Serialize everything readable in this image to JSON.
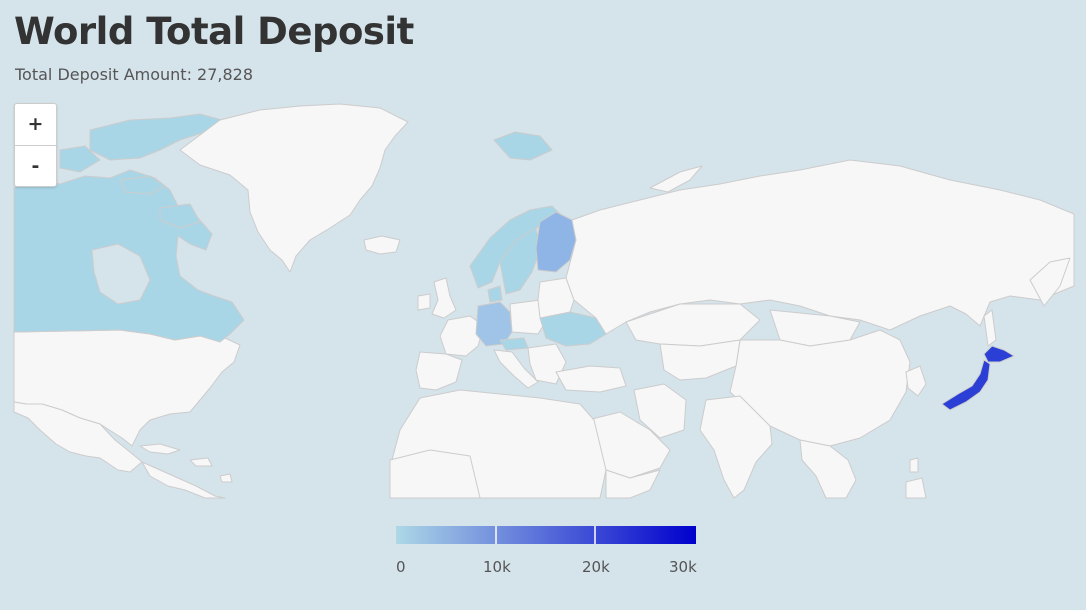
{
  "title": "World Total Deposit",
  "subtitle": "Total Deposit Amount: 27,828",
  "zoom": {
    "in_label": "+",
    "out_label": "-"
  },
  "legend": {
    "ticks": [
      {
        "value": 0,
        "label": "0"
      },
      {
        "value": 10000,
        "label": "10k"
      },
      {
        "value": 20000,
        "label": "20k"
      },
      {
        "value": 30000,
        "label": "30k"
      }
    ],
    "min": 0,
    "max": 30000,
    "color_min": "#add8e6",
    "color_max": "#0000cd"
  },
  "colors": {
    "ocean": "#d5e3eb",
    "land_no_data": "#f7f7f7",
    "border": "#cccccc"
  },
  "chart_data": {
    "type": "choropleth",
    "total": 27828,
    "regions_highlighted": [
      "Japan",
      "Finland",
      "Germany",
      "Canada",
      "Norway",
      "Sweden",
      "Ukraine",
      "Denmark",
      "Austria"
    ],
    "color_scale": [
      0,
      10000,
      20000,
      30000
    ]
  }
}
